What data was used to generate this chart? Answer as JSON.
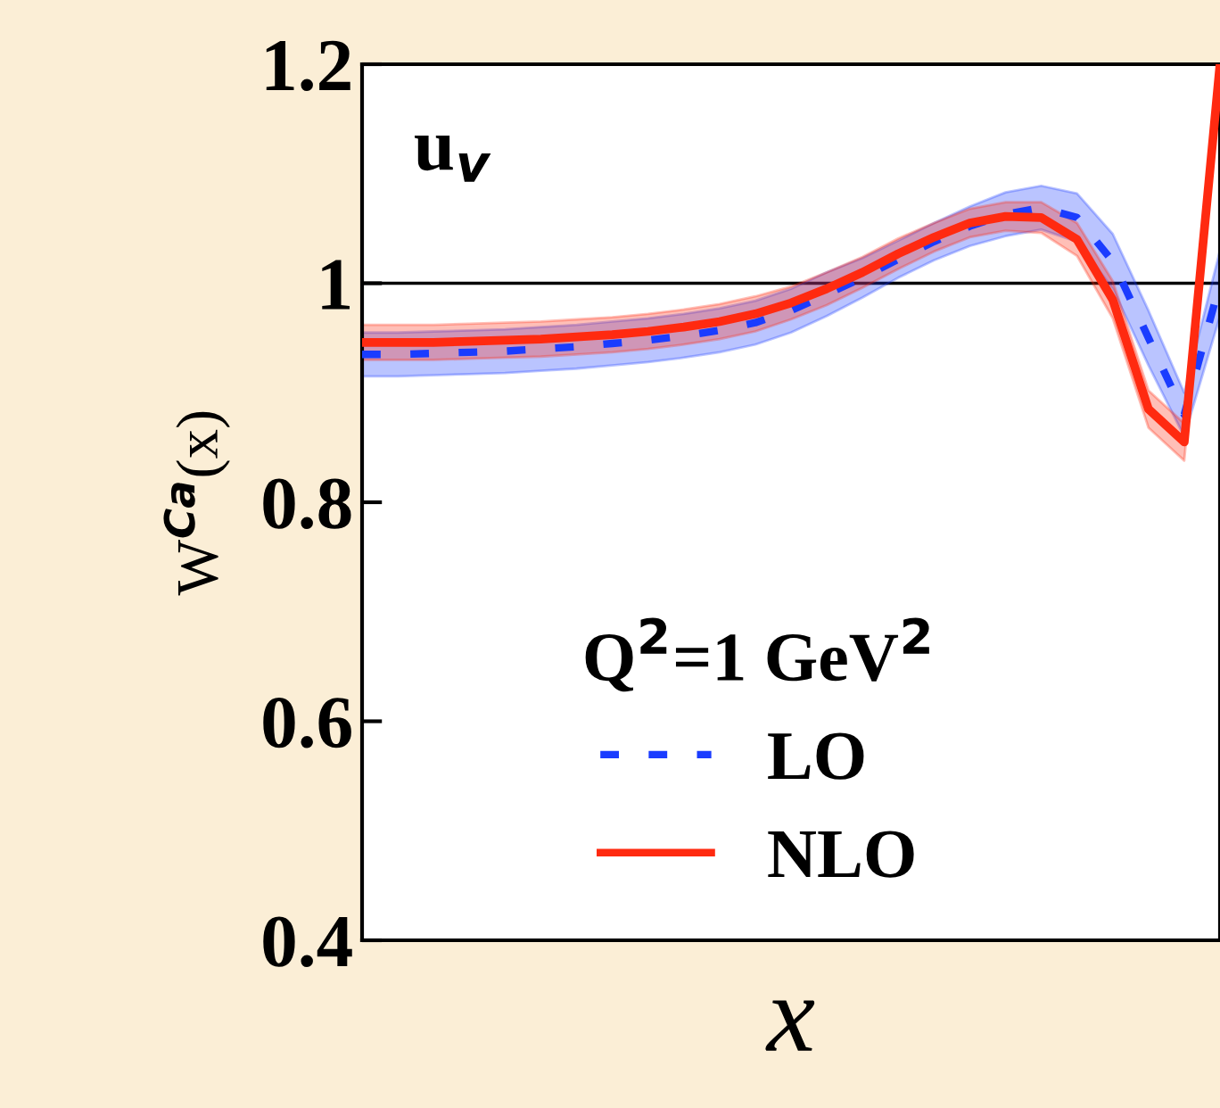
{
  "chart_data": {
    "type": "line",
    "xlabel": "x",
    "ylabel": "W$^{Ca}$(x)",
    "legend_title": "Q$^{2}$=1 GeV$^{2}$",
    "annotations": [
      "u$_{v}$"
    ],
    "categories": [
      null,
      null,
      null,
      null,
      null,
      null,
      null,
      null,
      null,
      null,
      null,
      null,
      null,
      null,
      null,
      null,
      null,
      null,
      null,
      null,
      null,
      null,
      null,
      null,
      null
    ],
    "series": [
      {
        "name": "LO",
        "color": "#1a3cff",
        "line_style": "dashed",
        "values": [
          0.935,
          0.935,
          0.936,
          0.937,
          0.938,
          0.94,
          0.942,
          0.945,
          0.948,
          0.952,
          0.957,
          0.964,
          0.975,
          0.99,
          1.005,
          1.022,
          1.038,
          1.052,
          1.063,
          1.069,
          1.06,
          1.02,
          0.95,
          0.88,
          1.0
        ],
        "lower": [
          0.915,
          0.915,
          0.916,
          0.917,
          0.918,
          0.92,
          0.922,
          0.925,
          0.928,
          0.932,
          0.937,
          0.944,
          0.955,
          0.97,
          0.987,
          1.005,
          1.021,
          1.034,
          1.043,
          1.049,
          1.038,
          0.995,
          0.925,
          0.86,
          0.97
        ],
        "upper": [
          0.955,
          0.955,
          0.956,
          0.957,
          0.958,
          0.96,
          0.962,
          0.965,
          0.968,
          0.972,
          0.977,
          0.984,
          0.995,
          1.01,
          1.023,
          1.039,
          1.055,
          1.07,
          1.083,
          1.089,
          1.082,
          1.045,
          0.975,
          0.9,
          1.03
        ]
      },
      {
        "name": "NLO",
        "color": "#ff2a10",
        "line_style": "solid",
        "values": [
          0.946,
          0.946,
          0.946,
          0.947,
          0.948,
          0.949,
          0.951,
          0.953,
          0.956,
          0.96,
          0.965,
          0.972,
          0.982,
          0.995,
          1.01,
          1.027,
          1.042,
          1.055,
          1.061,
          1.06,
          1.04,
          0.985,
          0.885,
          0.855,
          1.2
        ],
        "lower": [
          0.93,
          0.93,
          0.93,
          0.931,
          0.932,
          0.933,
          0.935,
          0.937,
          0.94,
          0.944,
          0.949,
          0.956,
          0.967,
          0.98,
          0.996,
          1.013,
          1.029,
          1.042,
          1.048,
          1.046,
          1.025,
          0.968,
          0.868,
          0.838,
          1.19
        ],
        "upper": [
          0.962,
          0.962,
          0.962,
          0.963,
          0.964,
          0.965,
          0.967,
          0.969,
          0.972,
          0.976,
          0.981,
          0.988,
          0.997,
          1.01,
          1.024,
          1.041,
          1.055,
          1.068,
          1.074,
          1.074,
          1.055,
          1.002,
          0.902,
          0.872,
          1.2
        ]
      }
    ],
    "ylim": [
      0.4,
      1.2
    ],
    "yticks": [
      0.4,
      0.6,
      0.8,
      1,
      1.2
    ],
    "tick_labels": "y",
    "grid": false,
    "legend": "bottom left",
    "ref_lines": [
      {
        "axis": "y",
        "value": 1,
        "color": "#000000"
      }
    ]
  }
}
